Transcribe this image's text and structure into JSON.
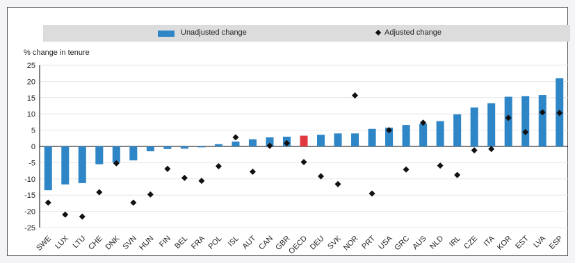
{
  "legend": {
    "unadjusted_label": "Unadjusted change",
    "adjusted_label": "Adjusted change"
  },
  "colors": {
    "bar": "#2f86c7",
    "highlight_bar": "#e03a3e",
    "marker": "#111111",
    "legend_bg": "#dcdcdc"
  },
  "chart_data": {
    "type": "bar",
    "ylabel": "% change in tenure",
    "ylim": [
      -25,
      25
    ],
    "yticks": [
      25,
      20,
      15,
      10,
      5,
      0,
      -5,
      -10,
      -15,
      -20,
      -25
    ],
    "highlight_category": "OECD",
    "categories": [
      "SWE",
      "LUX",
      "LTU",
      "CHE",
      "DNK",
      "SVN",
      "HUN",
      "FIN",
      "BEL",
      "FRA",
      "POL",
      "ISL",
      "AUT",
      "CAN",
      "GBR",
      "OECD",
      "DEU",
      "SVK",
      "NOR",
      "PRT",
      "USA",
      "GRC",
      "AUS",
      "NLD",
      "IRL",
      "CZE",
      "ITA",
      "KOR",
      "EST",
      "LVA",
      "ESP"
    ],
    "series": [
      {
        "name": "Unadjusted change",
        "kind": "bar",
        "values": [
          -13.5,
          -11.7,
          -11.3,
          -5.5,
          -5.0,
          -4.3,
          -1.5,
          -0.8,
          -0.7,
          -0.3,
          0.7,
          1.5,
          2.2,
          2.8,
          3.0,
          3.3,
          3.6,
          4.0,
          4.0,
          5.4,
          5.8,
          6.6,
          7.0,
          7.8,
          9.9,
          12.0,
          13.3,
          15.3,
          15.5,
          15.8,
          21.0
        ]
      },
      {
        "name": "Adjusted change",
        "kind": "marker",
        "values": [
          -17.3,
          -21.0,
          -21.6,
          -14.1,
          -5.2,
          -17.3,
          -14.8,
          -6.9,
          -9.7,
          -10.6,
          -6.1,
          2.8,
          -7.8,
          0.2,
          1.0,
          -4.8,
          -9.2,
          -11.6,
          15.7,
          -14.5,
          5.0,
          -7.1,
          7.3,
          -5.9,
          -8.8,
          -1.2,
          -0.8,
          8.8,
          4.4,
          10.5,
          10.3
        ]
      }
    ]
  }
}
